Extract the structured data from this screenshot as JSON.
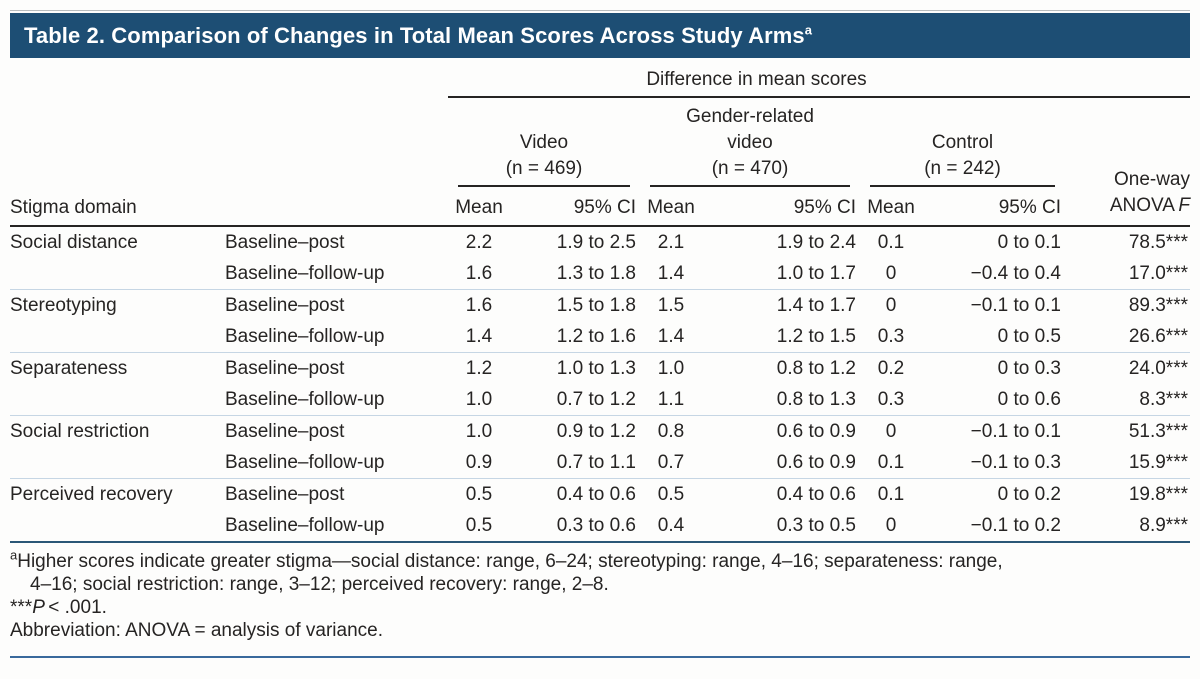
{
  "title": {
    "text": "Table 2. Comparison of Changes in Total Mean Scores Across Study Arms",
    "superscript": "a"
  },
  "header": {
    "spanner": "Difference in mean scores",
    "stigma_domain": "Stigma domain",
    "arms": [
      {
        "line1": "Video",
        "n": "(n = 469)"
      },
      {
        "line1": "Gender-related",
        "line2": "video",
        "n": "(n = 470)"
      },
      {
        "line1": "Control",
        "n": "(n = 242)"
      }
    ],
    "mean_label": "Mean",
    "ci_label": "95% CI",
    "anova_line1": "One-way",
    "anova_line2": "ANOVA",
    "anova_f": "F"
  },
  "rows": [
    {
      "domain": "Social distance",
      "comparison": "Baseline–post",
      "v_mean": "2.2",
      "v_ci": "1.9 to 2.5",
      "g_mean": "2.1",
      "g_ci": "1.9 to 2.4",
      "c_mean": "0.1",
      "c_ci": "0 to 0.1",
      "f": "78.5***"
    },
    {
      "domain": "",
      "comparison": "Baseline–follow-up",
      "v_mean": "1.6",
      "v_ci": "1.3 to 1.8",
      "g_mean": "1.4",
      "g_ci": "1.0 to 1.7",
      "c_mean": "0",
      "c_ci": "−0.4 to 0.4",
      "f": "17.0***"
    },
    {
      "domain": "Stereotyping",
      "comparison": "Baseline–post",
      "v_mean": "1.6",
      "v_ci": "1.5 to 1.8",
      "g_mean": "1.5",
      "g_ci": "1.4 to 1.7",
      "c_mean": "0",
      "c_ci": "−0.1 to 0.1",
      "f": "89.3***"
    },
    {
      "domain": "",
      "comparison": "Baseline–follow-up",
      "v_mean": "1.4",
      "v_ci": "1.2 to 1.6",
      "g_mean": "1.4",
      "g_ci": "1.2 to 1.5",
      "c_mean": "0.3",
      "c_ci": "0 to 0.5",
      "f": "26.6***"
    },
    {
      "domain": "Separateness",
      "comparison": "Baseline–post",
      "v_mean": "1.2",
      "v_ci": "1.0 to 1.3",
      "g_mean": "1.0",
      "g_ci": "0.8 to 1.2",
      "c_mean": "0.2",
      "c_ci": "0 to 0.3",
      "f": "24.0***"
    },
    {
      "domain": "",
      "comparison": "Baseline–follow-up",
      "v_mean": "1.0",
      "v_ci": "0.7 to 1.2",
      "g_mean": "1.1",
      "g_ci": "0.8 to 1.3",
      "c_mean": "0.3",
      "c_ci": "0 to 0.6",
      "f": "8.3***"
    },
    {
      "domain": "Social restriction",
      "comparison": "Baseline–post",
      "v_mean": "1.0",
      "v_ci": "0.9 to 1.2",
      "g_mean": "0.8",
      "g_ci": "0.6 to 0.9",
      "c_mean": "0",
      "c_ci": "−0.1 to 0.1",
      "f": "51.3***"
    },
    {
      "domain": "",
      "comparison": "Baseline–follow-up",
      "v_mean": "0.9",
      "v_ci": "0.7 to 1.1",
      "g_mean": "0.7",
      "g_ci": "0.6 to 0.9",
      "c_mean": "0.1",
      "c_ci": "−0.1 to 0.3",
      "f": "15.9***"
    },
    {
      "domain": "Perceived recovery",
      "comparison": "Baseline–post",
      "v_mean": "0.5",
      "v_ci": "0.4 to 0.6",
      "g_mean": "0.5",
      "g_ci": "0.4 to 0.6",
      "c_mean": "0.1",
      "c_ci": "0 to 0.2",
      "f": "19.8***"
    },
    {
      "domain": "",
      "comparison": "Baseline–follow-up",
      "v_mean": "0.5",
      "v_ci": "0.3 to 0.6",
      "g_mean": "0.4",
      "g_ci": "0.3 to 0.5",
      "c_mean": "0",
      "c_ci": "−0.1 to 0.2",
      "f": "8.9***"
    }
  ],
  "footnotes": {
    "a_marker": "a",
    "a_line1": "Higher scores indicate greater stigma—social distance: range, 6–24; stereotyping: range, 4–16; separateness: range,",
    "a_line2": "4–16; social restriction: range, 3–12; perceived recovery: range, 2–8.",
    "stars": "***",
    "p_italic": "P",
    "p_rest": "< .001.",
    "abbreviation": "Abbreviation: ANOVA = analysis of variance."
  },
  "colors": {
    "title_bar": "#1d4e74",
    "rule_black": "#262423",
    "rule_table_bottom": "#2b5777",
    "rule_page_bottom": "#39699c",
    "group_separator": "#c6d6e4"
  }
}
